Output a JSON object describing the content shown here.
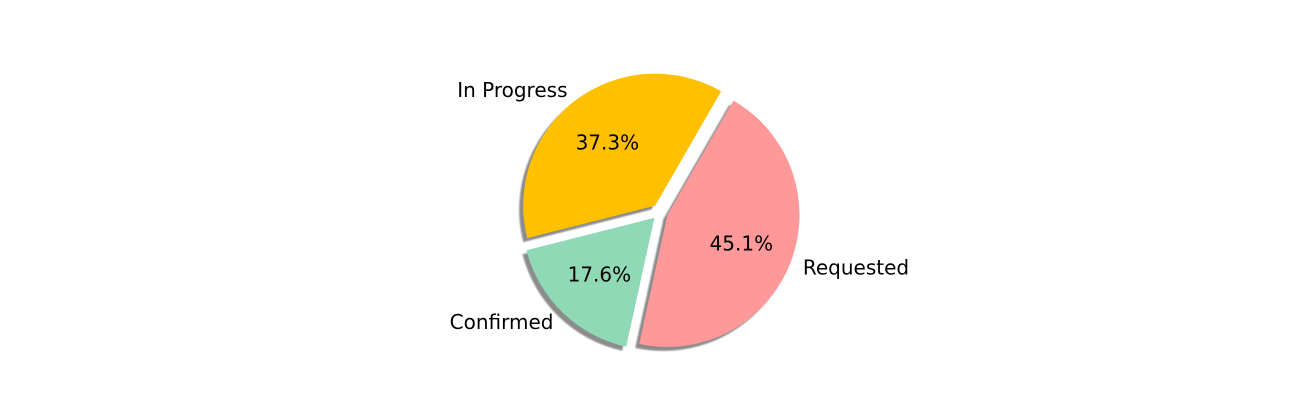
{
  "chart_data": {
    "type": "pie",
    "slices": [
      {
        "label": "Requested",
        "value": 45.1,
        "pct_label": "45.1%",
        "color": "#ff9999"
      },
      {
        "label": "Confirmed",
        "value": 17.6,
        "pct_label": "17.6%",
        "color": "#8fd9b6"
      },
      {
        "label": "In Progress",
        "value": 37.3,
        "pct_label": "37.3%",
        "color": "#ffc000"
      }
    ],
    "exploded": true,
    "shadow": true,
    "legend": "none",
    "grid": false
  }
}
